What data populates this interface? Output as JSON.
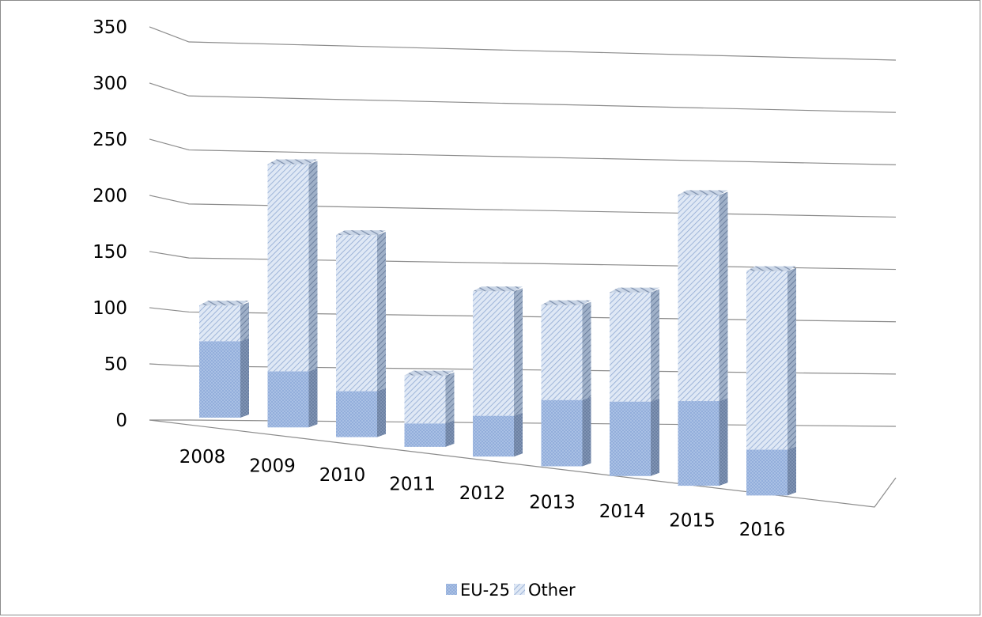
{
  "chart_data": {
    "type": "bar",
    "stacked": true,
    "three_d": true,
    "title": "",
    "xlabel": "",
    "ylabel": "",
    "categories": [
      "2008",
      "2009",
      "2010",
      "2011",
      "2012",
      "2013",
      "2014",
      "2015",
      "2016"
    ],
    "series": [
      {
        "name": "EU-25",
        "values": [
          75,
          55,
          45,
          23,
          40,
          65,
          73,
          83,
          45
        ],
        "color": "#9bb7e0",
        "pattern": "checker"
      },
      {
        "name": "Other",
        "values": [
          35,
          203,
          153,
          47,
          122,
          93,
          107,
          202,
          175
        ],
        "color": "#c4d4ec",
        "pattern": "diagonal"
      }
    ],
    "yticks": [
      0,
      50,
      100,
      150,
      200,
      250,
      300,
      350
    ],
    "ylim": [
      0,
      350
    ],
    "grid": true,
    "legend": "bottom"
  }
}
